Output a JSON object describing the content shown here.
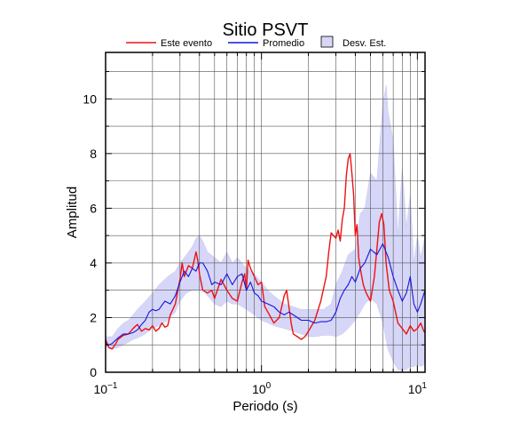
{
  "chart_data": {
    "type": "line",
    "title": "Sitio PSVT",
    "xlabel": "Periodo (s)",
    "ylabel": "Amplitud",
    "xscale": "log",
    "xlim": [
      0.1,
      11.2
    ],
    "ylim": [
      0,
      11.7
    ],
    "grid": true,
    "legend_position": "top",
    "x_ticks": [
      {
        "value": 0.1,
        "base": "10",
        "exp": "−1"
      },
      {
        "value": 1,
        "base": "10",
        "exp": "0"
      },
      {
        "value": 10,
        "base": "10",
        "exp": "1"
      }
    ],
    "y_ticks": [
      0,
      2,
      4,
      6,
      8,
      10
    ],
    "legend": {
      "event": "Este evento",
      "mean": "Promedio",
      "std": "Desv. Est."
    },
    "colors": {
      "event": "#ee1111",
      "mean": "#1515dd",
      "std_fill": "#d6d6f8",
      "std_edge": "#c8c8f0"
    },
    "series": [
      {
        "key": "event",
        "name": "Este evento",
        "x": [
          0.1,
          0.105,
          0.11,
          0.115,
          0.12,
          0.13,
          0.14,
          0.15,
          0.16,
          0.17,
          0.18,
          0.19,
          0.2,
          0.21,
          0.22,
          0.23,
          0.24,
          0.25,
          0.26,
          0.28,
          0.3,
          0.31,
          0.32,
          0.34,
          0.36,
          0.38,
          0.39,
          0.4,
          0.42,
          0.45,
          0.48,
          0.5,
          0.55,
          0.6,
          0.65,
          0.7,
          0.75,
          0.78,
          0.8,
          0.82,
          0.85,
          0.9,
          0.95,
          1.0,
          1.05,
          1.1,
          1.2,
          1.3,
          1.4,
          1.45,
          1.5,
          1.55,
          1.6,
          1.7,
          1.8,
          1.9,
          2.0,
          2.2,
          2.4,
          2.6,
          2.7,
          2.8,
          2.9,
          3.0,
          3.1,
          3.2,
          3.3,
          3.4,
          3.5,
          3.6,
          3.7,
          3.8,
          3.9,
          4.0,
          4.1,
          4.2,
          4.3,
          4.5,
          4.7,
          5.0,
          5.3,
          5.5,
          5.7,
          5.9,
          6.1,
          6.3,
          6.6,
          7.0,
          7.5,
          8.0,
          8.5,
          9.0,
          9.5,
          10.0,
          10.5,
          11.0,
          11.2
        ],
        "y": [
          1.2,
          0.9,
          0.85,
          1.0,
          1.2,
          1.35,
          1.4,
          1.6,
          1.75,
          1.5,
          1.6,
          1.55,
          1.7,
          1.5,
          1.6,
          1.8,
          1.65,
          1.7,
          2.1,
          2.5,
          3.4,
          4.0,
          3.5,
          3.9,
          3.8,
          4.4,
          4.1,
          3.6,
          3.0,
          2.9,
          3.0,
          2.7,
          3.4,
          3.0,
          2.7,
          2.6,
          3.3,
          3.6,
          3.0,
          4.1,
          3.8,
          3.5,
          3.2,
          3.3,
          2.4,
          2.2,
          1.8,
          2.0,
          2.8,
          3.0,
          2.4,
          1.8,
          1.4,
          1.3,
          1.2,
          1.3,
          1.5,
          1.9,
          2.6,
          3.5,
          4.4,
          5.1,
          5.0,
          4.9,
          5.2,
          4.8,
          5.6,
          6.0,
          7.2,
          7.8,
          8.0,
          7.3,
          6.5,
          5.0,
          5.4,
          4.2,
          3.8,
          3.2,
          2.9,
          2.6,
          3.5,
          4.5,
          5.5,
          5.8,
          5.4,
          4.0,
          3.0,
          2.6,
          1.8,
          1.6,
          1.4,
          1.7,
          1.5,
          1.6,
          1.8,
          1.5,
          1.45
        ]
      },
      {
        "key": "mean",
        "name": "Promedio",
        "x": [
          0.1,
          0.105,
          0.11,
          0.12,
          0.13,
          0.14,
          0.15,
          0.16,
          0.17,
          0.18,
          0.19,
          0.2,
          0.21,
          0.22,
          0.24,
          0.26,
          0.28,
          0.3,
          0.32,
          0.34,
          0.36,
          0.38,
          0.4,
          0.42,
          0.45,
          0.48,
          0.5,
          0.55,
          0.6,
          0.65,
          0.7,
          0.75,
          0.8,
          0.85,
          0.9,
          0.95,
          1.0,
          1.1,
          1.2,
          1.3,
          1.4,
          1.5,
          1.6,
          1.7,
          1.8,
          2.0,
          2.2,
          2.4,
          2.6,
          2.8,
          3.0,
          3.2,
          3.4,
          3.6,
          3.8,
          4.0,
          4.3,
          4.6,
          5.0,
          5.5,
          6.0,
          6.5,
          7.0,
          7.5,
          8.0,
          8.5,
          9.0,
          9.5,
          10.0,
          10.5,
          11.2
        ],
        "y": [
          1.05,
          1.0,
          1.05,
          1.25,
          1.4,
          1.4,
          1.45,
          1.55,
          1.75,
          1.9,
          2.2,
          2.3,
          2.25,
          2.3,
          2.6,
          2.5,
          2.8,
          3.3,
          3.7,
          3.5,
          3.8,
          3.7,
          4.0,
          4.0,
          3.7,
          3.2,
          3.3,
          3.2,
          3.6,
          3.2,
          3.5,
          3.6,
          3.0,
          3.3,
          2.9,
          2.8,
          2.6,
          2.5,
          2.4,
          2.2,
          2.1,
          2.2,
          2.1,
          2.0,
          1.9,
          1.9,
          1.8,
          1.85,
          1.85,
          1.9,
          2.2,
          2.7,
          3.0,
          3.2,
          3.5,
          3.3,
          3.8,
          4.0,
          4.5,
          4.3,
          4.7,
          4.2,
          3.5,
          3.0,
          2.6,
          2.9,
          3.5,
          2.5,
          2.2,
          2.5,
          3.0
        ]
      }
    ],
    "std_band": {
      "x": [
        0.1,
        0.11,
        0.12,
        0.13,
        0.14,
        0.15,
        0.16,
        0.18,
        0.2,
        0.22,
        0.25,
        0.28,
        0.3,
        0.33,
        0.36,
        0.38,
        0.4,
        0.42,
        0.45,
        0.5,
        0.55,
        0.6,
        0.65,
        0.7,
        0.8,
        0.9,
        1.0,
        1.1,
        1.2,
        1.4,
        1.6,
        1.8,
        2.0,
        2.2,
        2.5,
        2.8,
        3.0,
        3.3,
        3.6,
        4.0,
        4.3,
        4.6,
        5.0,
        5.5,
        6.0,
        6.3,
        6.5,
        7.0,
        7.5,
        8.0,
        8.5,
        9.0,
        9.5,
        10.0,
        10.5,
        11.2
      ],
      "upper": [
        1.3,
        1.3,
        1.6,
        1.8,
        1.9,
        2.1,
        2.3,
        2.6,
        2.9,
        3.2,
        3.5,
        3.7,
        4.0,
        4.3,
        4.6,
        4.9,
        5.0,
        4.8,
        4.4,
        4.2,
        4.0,
        4.4,
        4.0,
        4.2,
        3.8,
        3.6,
        3.3,
        3.0,
        2.8,
        2.5,
        2.4,
        2.3,
        2.3,
        2.3,
        2.3,
        2.5,
        3.2,
        3.7,
        4.3,
        4.5,
        5.8,
        6.0,
        7.3,
        7.0,
        9.8,
        10.5,
        9.5,
        8.5,
        5.0,
        7.5,
        5.3,
        6.5,
        4.0,
        5.0,
        4.2,
        5.0
      ],
      "lower": [
        0.95,
        0.85,
        0.9,
        1.0,
        1.1,
        1.2,
        1.25,
        1.4,
        1.6,
        1.7,
        1.9,
        2.2,
        2.6,
        2.9,
        3.0,
        3.0,
        3.0,
        3.0,
        2.8,
        2.5,
        2.4,
        2.6,
        2.5,
        2.5,
        2.3,
        2.1,
        1.9,
        1.8,
        1.7,
        1.6,
        1.5,
        1.4,
        1.3,
        1.3,
        1.35,
        1.35,
        1.3,
        1.4,
        1.6,
        1.9,
        2.2,
        2.5,
        2.7,
        2.5,
        1.8,
        1.2,
        0.8,
        0.4,
        0.1,
        0.05,
        0.1,
        0.2,
        0.2,
        0.3,
        0.2,
        0.3
      ]
    }
  }
}
